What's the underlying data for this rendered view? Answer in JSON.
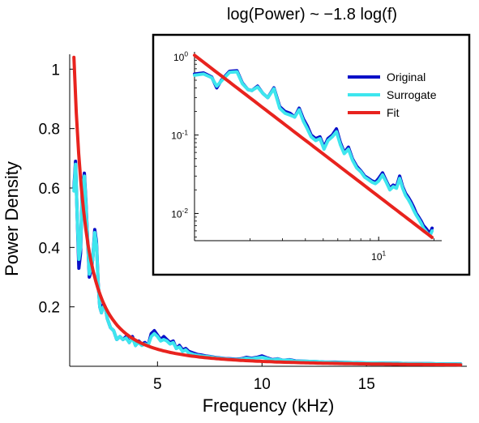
{
  "chart_data": [
    {
      "type": "line",
      "title": "",
      "xlabel": "Frequency (kHz)",
      "ylabel": "Power Density",
      "xlim": [
        0.8,
        19.8
      ],
      "ylim": [
        0.0,
        1.05
      ],
      "x_ticks": [
        5,
        10,
        15
      ],
      "x_tick_labels": [
        "5",
        "10",
        "15"
      ],
      "y_ticks": [
        0.2,
        0.4,
        0.6,
        0.8,
        1.0
      ],
      "y_tick_labels": [
        "0.2",
        "0.4",
        "0.6",
        "0.8",
        "1"
      ],
      "grid": false,
      "series": [
        {
          "name": "Original",
          "color": "#0a10c8",
          "x": [
            1.0,
            1.08,
            1.16,
            1.24,
            1.32,
            1.4,
            1.5,
            1.58,
            1.66,
            1.74,
            1.82,
            1.9,
            2.0,
            2.08,
            2.16,
            2.24,
            2.32,
            2.4,
            2.5,
            2.6,
            2.75,
            2.9,
            3.05,
            3.2,
            3.35,
            3.5,
            3.65,
            3.8,
            3.95,
            4.1,
            4.25,
            4.4,
            4.55,
            4.7,
            4.85,
            5.0,
            5.15,
            5.3,
            5.45,
            5.6,
            5.75,
            5.9,
            6.05,
            6.2,
            6.35,
            6.5,
            6.7,
            6.9,
            7.1,
            7.3,
            7.5,
            7.75,
            8.0,
            8.25,
            8.5,
            8.75,
            9.0,
            9.25,
            9.5,
            9.75,
            10.0,
            10.25,
            10.5,
            10.75,
            11.0,
            11.3,
            11.6,
            12.0,
            12.5,
            13.0,
            13.5,
            14.0,
            14.5,
            15.0,
            15.5,
            16.0,
            16.5,
            17.0,
            17.5,
            18.0,
            18.5,
            19.0,
            19.5
          ],
          "y": [
            0.6,
            0.69,
            0.5,
            0.33,
            0.38,
            0.6,
            0.65,
            0.55,
            0.42,
            0.3,
            0.32,
            0.36,
            0.46,
            0.42,
            0.28,
            0.2,
            0.18,
            0.21,
            0.2,
            0.16,
            0.13,
            0.12,
            0.09,
            0.1,
            0.09,
            0.1,
            0.08,
            0.1,
            0.07,
            0.085,
            0.075,
            0.08,
            0.07,
            0.11,
            0.12,
            0.105,
            0.09,
            0.1,
            0.09,
            0.08,
            0.085,
            0.06,
            0.07,
            0.055,
            0.06,
            0.05,
            0.045,
            0.04,
            0.038,
            0.035,
            0.033,
            0.03,
            0.028,
            0.026,
            0.025,
            0.024,
            0.025,
            0.03,
            0.027,
            0.03,
            0.035,
            0.028,
            0.022,
            0.025,
            0.02,
            0.022,
            0.018,
            0.017,
            0.016,
            0.014,
            0.014,
            0.013,
            0.012,
            0.011,
            0.011,
            0.01,
            0.01,
            0.009,
            0.009,
            0.009,
            0.008,
            0.008,
            0.008
          ]
        },
        {
          "name": "Surrogate",
          "color": "#3ee6ee",
          "x": [
            1.0,
            1.08,
            1.16,
            1.24,
            1.32,
            1.4,
            1.5,
            1.58,
            1.66,
            1.74,
            1.82,
            1.9,
            2.0,
            2.08,
            2.16,
            2.24,
            2.32,
            2.4,
            2.5,
            2.6,
            2.75,
            2.9,
            3.05,
            3.2,
            3.35,
            3.5,
            3.65,
            3.8,
            3.95,
            4.1,
            4.25,
            4.4,
            4.55,
            4.7,
            4.85,
            5.0,
            5.15,
            5.3,
            5.45,
            5.6,
            5.75,
            5.9,
            6.05,
            6.2,
            6.35,
            6.5,
            6.7,
            6.9,
            7.1,
            7.3,
            7.5,
            7.75,
            8.0,
            8.25,
            8.5,
            8.75,
            9.0,
            9.25,
            9.5,
            9.75,
            10.0,
            10.25,
            10.5,
            10.75,
            11.0,
            11.3,
            11.6,
            12.0,
            12.5,
            13.0,
            13.5,
            14.0,
            14.5,
            15.0,
            15.5,
            16.0,
            16.5,
            17.0,
            17.5,
            18.0,
            18.5,
            19.0,
            19.5
          ],
          "y": [
            0.59,
            0.68,
            0.5,
            0.36,
            0.4,
            0.59,
            0.64,
            0.54,
            0.42,
            0.31,
            0.33,
            0.36,
            0.45,
            0.41,
            0.28,
            0.2,
            0.18,
            0.2,
            0.2,
            0.16,
            0.13,
            0.12,
            0.09,
            0.1,
            0.09,
            0.095,
            0.08,
            0.095,
            0.07,
            0.08,
            0.07,
            0.075,
            0.07,
            0.1,
            0.11,
            0.1,
            0.085,
            0.09,
            0.085,
            0.075,
            0.08,
            0.06,
            0.065,
            0.05,
            0.055,
            0.045,
            0.04,
            0.037,
            0.035,
            0.033,
            0.032,
            0.029,
            0.027,
            0.025,
            0.024,
            0.023,
            0.024,
            0.027,
            0.025,
            0.028,
            0.03,
            0.026,
            0.021,
            0.024,
            0.02,
            0.021,
            0.017,
            0.017,
            0.016,
            0.014,
            0.013,
            0.013,
            0.012,
            0.011,
            0.011,
            0.01,
            0.01,
            0.009,
            0.009,
            0.009,
            0.008,
            0.008,
            0.008
          ]
        },
        {
          "name": "Fit",
          "color": "#e8231e",
          "function": "power_law",
          "coefficient": 1.04,
          "exponent": -1.8,
          "x_range": [
            1.0,
            19.5
          ]
        }
      ]
    },
    {
      "type": "line",
      "title": "log(Power) ~ −1.8 log(f)",
      "xlabel": "",
      "ylabel": "",
      "x_scale": "log",
      "y_scale": "log",
      "xlim": [
        1.0,
        22.0
      ],
      "ylim": [
        0.0045,
        1.15
      ],
      "x_ticks": [
        10
      ],
      "x_tick_labels": [
        {
          "base": "10",
          "exp": "1"
        }
      ],
      "y_ticks": [
        1,
        0.1,
        0.01
      ],
      "y_tick_labels": [
        {
          "base": "10",
          "exp": "0"
        },
        {
          "base": "10",
          "exp": "-1"
        },
        {
          "base": "10",
          "exp": "-2"
        }
      ],
      "legend": "top-right",
      "legend_entries": [
        "Original",
        "Surrogate",
        "Fit"
      ],
      "grid": false,
      "series": [
        {
          "name": "Original",
          "color": "#0a10c8",
          "x": [
            1.0,
            1.12,
            1.24,
            1.32,
            1.4,
            1.55,
            1.7,
            1.82,
            1.95,
            2.05,
            2.2,
            2.35,
            2.5,
            2.7,
            2.9,
            3.1,
            3.3,
            3.5,
            3.7,
            3.9,
            4.1,
            4.3,
            4.55,
            4.8,
            5.05,
            5.3,
            5.6,
            5.9,
            6.2,
            6.5,
            6.85,
            7.2,
            7.6,
            8.0,
            8.4,
            8.8,
            9.2,
            9.6,
            10.0,
            10.5,
            11.0,
            11.5,
            12.0,
            12.5,
            13.0,
            13.5,
            14.0,
            14.5,
            15.0,
            15.5,
            16.0,
            16.5,
            17.0,
            17.5,
            18.0,
            18.5,
            19.0,
            19.5
          ],
          "y": [
            0.6,
            0.62,
            0.55,
            0.4,
            0.5,
            0.65,
            0.66,
            0.46,
            0.38,
            0.37,
            0.42,
            0.34,
            0.3,
            0.4,
            0.23,
            0.2,
            0.19,
            0.17,
            0.22,
            0.16,
            0.13,
            0.1,
            0.09,
            0.095,
            0.07,
            0.09,
            0.1,
            0.12,
            0.08,
            0.06,
            0.07,
            0.05,
            0.04,
            0.035,
            0.03,
            0.028,
            0.026,
            0.025,
            0.028,
            0.033,
            0.026,
            0.021,
            0.023,
            0.022,
            0.03,
            0.022,
            0.018,
            0.016,
            0.014,
            0.012,
            0.01,
            0.009,
            0.008,
            0.007,
            0.0065,
            0.006,
            0.0055,
            0.0065
          ]
        },
        {
          "name": "Surrogate",
          "color": "#3ee6ee",
          "x": [
            1.0,
            1.12,
            1.24,
            1.32,
            1.4,
            1.55,
            1.7,
            1.82,
            1.95,
            2.05,
            2.2,
            2.35,
            2.5,
            2.7,
            2.9,
            3.1,
            3.3,
            3.5,
            3.7,
            3.9,
            4.1,
            4.3,
            4.55,
            4.8,
            5.05,
            5.3,
            5.6,
            5.9,
            6.2,
            6.5,
            6.85,
            7.2,
            7.6,
            8.0,
            8.4,
            8.8,
            9.2,
            9.6,
            10.0,
            10.5,
            11.0,
            11.5,
            12.0,
            12.5,
            13.0,
            13.5,
            14.0,
            14.5,
            15.0,
            15.5,
            16.0,
            16.5,
            17.0,
            17.5,
            18.0,
            18.5,
            19.0,
            19.5
          ],
          "y": [
            0.58,
            0.6,
            0.54,
            0.42,
            0.49,
            0.63,
            0.64,
            0.45,
            0.38,
            0.37,
            0.41,
            0.34,
            0.3,
            0.39,
            0.22,
            0.19,
            0.18,
            0.17,
            0.21,
            0.15,
            0.12,
            0.095,
            0.085,
            0.09,
            0.066,
            0.085,
            0.095,
            0.11,
            0.075,
            0.058,
            0.066,
            0.048,
            0.038,
            0.034,
            0.029,
            0.027,
            0.025,
            0.024,
            0.026,
            0.031,
            0.025,
            0.02,
            0.022,
            0.021,
            0.028,
            0.021,
            0.017,
            0.015,
            0.013,
            0.011,
            0.0095,
            0.0085,
            0.0075,
            0.0065,
            0.006,
            0.0055,
            0.0052,
            0.006
          ]
        },
        {
          "name": "Fit",
          "color": "#e8231e",
          "function": "power_law",
          "coefficient": 1.04,
          "exponent": -1.8,
          "x_range": [
            1.0,
            19.5
          ]
        }
      ]
    }
  ]
}
